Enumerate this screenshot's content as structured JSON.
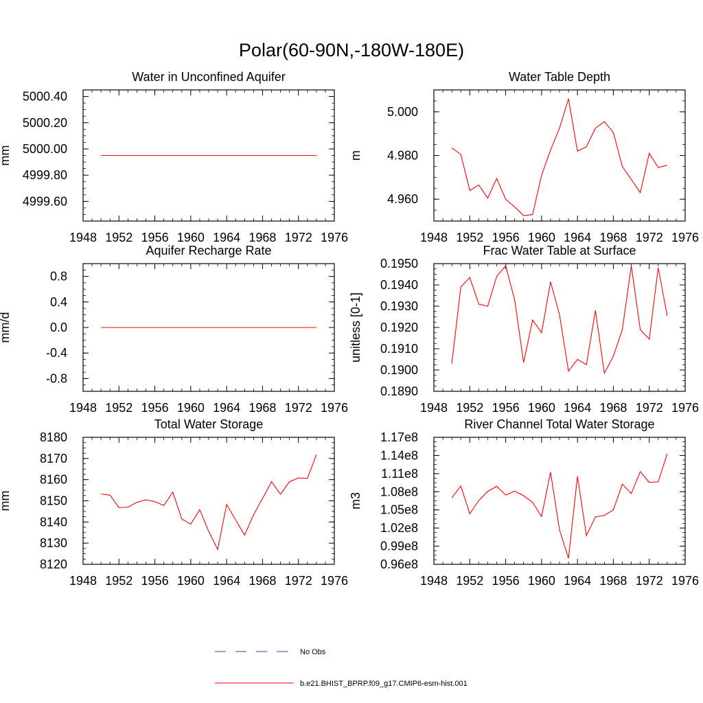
{
  "figure_title": "Polar(60-90N,-180W-180E)",
  "colors": {
    "model_line": "#ff0000",
    "obs_line": "#4040c0",
    "axis": "#000000"
  },
  "legend": {
    "obs_label": "No Obs",
    "model_label": "b.e21.BHIST_BPRP.f09_g17.CMIP6-esm-hist.001"
  },
  "chart_data": [
    {
      "type": "line",
      "title": "Water in Unconfined Aquifer",
      "xlabel": "",
      "ylabel": "mm",
      "xlim": [
        1948,
        1976
      ],
      "ylim": [
        4999.45,
        5000.45
      ],
      "xticks": [
        1948,
        1952,
        1956,
        1960,
        1964,
        1968,
        1972,
        1976
      ],
      "xtick_labels": [
        "1948",
        "1952",
        "1956",
        "1960",
        "1964",
        "1968",
        "1972",
        "1976"
      ],
      "yticks": [
        4999.6,
        4999.8,
        5000.0,
        5000.2,
        5000.4
      ],
      "ytick_labels": [
        "4999.60",
        "4999.80",
        "5000.00",
        "5000.20",
        "5000.40"
      ],
      "series": [
        {
          "name": "b.e21.BHIST_BPRP.f09_g17.CMIP6-esm-hist.001",
          "x": [
            1950,
            1951,
            1952,
            1953,
            1954,
            1955,
            1956,
            1957,
            1958,
            1959,
            1960,
            1961,
            1962,
            1963,
            1964,
            1965,
            1966,
            1967,
            1968,
            1969,
            1970,
            1971,
            1972,
            1973,
            1974
          ],
          "values": [
            4999.95,
            4999.95,
            4999.95,
            4999.95,
            4999.95,
            4999.95,
            4999.95,
            4999.95,
            4999.95,
            4999.95,
            4999.95,
            4999.95,
            4999.95,
            4999.95,
            4999.95,
            4999.95,
            4999.95,
            4999.95,
            4999.95,
            4999.95,
            4999.95,
            4999.95,
            4999.95,
            4999.95,
            4999.95
          ]
        }
      ]
    },
    {
      "type": "line",
      "title": "Water Table Depth",
      "xlabel": "",
      "ylabel": "m",
      "xlim": [
        1948,
        1976
      ],
      "ylim": [
        4.95,
        5.01
      ],
      "xticks": [
        1948,
        1952,
        1956,
        1960,
        1964,
        1968,
        1972,
        1976
      ],
      "xtick_labels": [
        "1948",
        "1952",
        "1956",
        "1960",
        "1964",
        "1968",
        "1972",
        "1976"
      ],
      "yticks": [
        4.96,
        4.98,
        5.0
      ],
      "ytick_labels": [
        "4.960",
        "4.980",
        "5.000"
      ],
      "series": [
        {
          "name": "b.e21.BHIST_BPRP.f09_g17.CMIP6-esm-hist.001",
          "x": [
            1950,
            1951,
            1952,
            1953,
            1954,
            1955,
            1956,
            1957,
            1958,
            1959,
            1960,
            1961,
            1962,
            1963,
            1964,
            1965,
            1966,
            1967,
            1968,
            1969,
            1970,
            1971,
            1972,
            1973,
            1974
          ],
          "values": [
            4.9835,
            4.9805,
            4.964,
            4.9665,
            4.9605,
            4.9695,
            4.96,
            4.9565,
            4.9525,
            4.953,
            4.971,
            4.9825,
            4.9925,
            5.006,
            4.982,
            4.984,
            4.9925,
            4.9955,
            4.9905,
            4.975,
            4.969,
            4.963,
            4.981,
            4.9745,
            4.9755
          ]
        }
      ]
    },
    {
      "type": "line",
      "title": "Aquifer Recharge Rate",
      "xlabel": "",
      "ylabel": "mm/d",
      "xlim": [
        1948,
        1976
      ],
      "ylim": [
        -1.0,
        1.0
      ],
      "xticks": [
        1948,
        1952,
        1956,
        1960,
        1964,
        1968,
        1972,
        1976
      ],
      "xtick_labels": [
        "1948",
        "1952",
        "1956",
        "1960",
        "1964",
        "1968",
        "1972",
        "1976"
      ],
      "yticks": [
        -0.8,
        -0.4,
        0.0,
        0.4,
        0.8
      ],
      "ytick_labels": [
        "-0.8",
        "-0.4",
        "0.0",
        "0.4",
        "0.8"
      ],
      "series": [
        {
          "name": "b.e21.BHIST_BPRP.f09_g17.CMIP6-esm-hist.001",
          "x": [
            1950,
            1951,
            1952,
            1953,
            1954,
            1955,
            1956,
            1957,
            1958,
            1959,
            1960,
            1961,
            1962,
            1963,
            1964,
            1965,
            1966,
            1967,
            1968,
            1969,
            1970,
            1971,
            1972,
            1973,
            1974
          ],
          "values": [
            0,
            0,
            0,
            0,
            0,
            0,
            0,
            0,
            0,
            0,
            0,
            0,
            0,
            0,
            0,
            0,
            0,
            0,
            0,
            0,
            0,
            0,
            0,
            0,
            0
          ]
        }
      ]
    },
    {
      "type": "line",
      "title": "Frac Water Table at Surface",
      "xlabel": "",
      "ylabel": "unitless [0-1]",
      "xlim": [
        1948,
        1976
      ],
      "ylim": [
        0.189,
        0.195
      ],
      "xticks": [
        1948,
        1952,
        1956,
        1960,
        1964,
        1968,
        1972,
        1976
      ],
      "xtick_labels": [
        "1948",
        "1952",
        "1956",
        "1960",
        "1964",
        "1968",
        "1972",
        "1976"
      ],
      "yticks": [
        0.189,
        0.19,
        0.191,
        0.192,
        0.193,
        0.194,
        0.195
      ],
      "ytick_labels": [
        "0.1890",
        "0.1900",
        "0.1910",
        "0.1920",
        "0.1930",
        "0.1940",
        "0.1950"
      ],
      "series": [
        {
          "name": "b.e21.BHIST_BPRP.f09_g17.CMIP6-esm-hist.001",
          "x": [
            1950,
            1951,
            1952,
            1953,
            1954,
            1955,
            1956,
            1957,
            1958,
            1959,
            1960,
            1961,
            1962,
            1963,
            1964,
            1965,
            1966,
            1967,
            1968,
            1969,
            1970,
            1971,
            1972,
            1973,
            1974
          ],
          "values": [
            0.1903,
            0.1939,
            0.19435,
            0.1931,
            0.193,
            0.1944,
            0.1949,
            0.1933,
            0.19035,
            0.19235,
            0.19175,
            0.19415,
            0.1926,
            0.18995,
            0.1905,
            0.19025,
            0.1928,
            0.18985,
            0.19065,
            0.1919,
            0.1949,
            0.1919,
            0.19145,
            0.1948,
            0.19255
          ]
        }
      ]
    },
    {
      "type": "line",
      "title": "Total Water Storage",
      "xlabel": "",
      "ylabel": "mm",
      "xlim": [
        1948,
        1976
      ],
      "ylim": [
        8120,
        8180
      ],
      "xticks": [
        1948,
        1952,
        1956,
        1960,
        1964,
        1968,
        1972,
        1976
      ],
      "xtick_labels": [
        "1948",
        "1952",
        "1956",
        "1960",
        "1964",
        "1968",
        "1972",
        "1976"
      ],
      "yticks": [
        8120,
        8130,
        8140,
        8150,
        8160,
        8170,
        8180
      ],
      "ytick_labels": [
        "8120",
        "8130",
        "8140",
        "8150",
        "8160",
        "8170",
        "8180"
      ],
      "series": [
        {
          "name": "b.e21.BHIST_BPRP.f09_g17.CMIP6-esm-hist.001",
          "x": [
            1950,
            1951,
            1952,
            1953,
            1954,
            1955,
            1956,
            1957,
            1958,
            1959,
            1960,
            1961,
            1962,
            1963,
            1964,
            1965,
            1966,
            1967,
            1968,
            1969,
            1970,
            1971,
            1972,
            1973,
            1974
          ],
          "values": [
            8153.2,
            8152.7,
            8146.8,
            8147,
            8149.3,
            8150.5,
            8149.6,
            8147.8,
            8154.1,
            8141.4,
            8139,
            8145.8,
            8135.6,
            8127,
            8148.3,
            8141,
            8133.8,
            8143.4,
            8151.1,
            8159,
            8153.1,
            8159,
            8160.8,
            8160.6,
            8171.8
          ]
        }
      ]
    },
    {
      "type": "line",
      "title": "River Channel Total Water Storage",
      "xlabel": "",
      "ylabel": "m3",
      "xlim": [
        1948,
        1976
      ],
      "ylim": [
        96000000.0,
        117000000.0
      ],
      "xticks": [
        1948,
        1952,
        1956,
        1960,
        1964,
        1968,
        1972,
        1976
      ],
      "xtick_labels": [
        "1948",
        "1952",
        "1956",
        "1960",
        "1964",
        "1968",
        "1972",
        "1976"
      ],
      "yticks": [
        96000000.0,
        99000000.0,
        102000000.0,
        105000000.0,
        108000000.0,
        111000000.0,
        114000000.0,
        117000000.0
      ],
      "ytick_labels": [
        "0.96e8",
        "0.99e8",
        "1.02e8",
        "1.05e8",
        "1.08e8",
        "1.11e8",
        "1.14e8",
        "1.17e8"
      ],
      "series": [
        {
          "name": "b.e21.BHIST_BPRP.f09_g17.CMIP6-esm-hist.001",
          "x": [
            1950,
            1951,
            1952,
            1953,
            1954,
            1955,
            1956,
            1957,
            1958,
            1959,
            1960,
            1961,
            1962,
            1963,
            1964,
            1965,
            1966,
            1967,
            1968,
            1969,
            1970,
            1971,
            1972,
            1973,
            1974
          ],
          "values": [
            107000000.0,
            108950000.0,
            104350000.0,
            106550000.0,
            108050000.0,
            108900000.0,
            107450000.0,
            108100000.0,
            107350000.0,
            106250000.0,
            103900000.0,
            111250000.0,
            101700000.0,
            97000000.0,
            110550000.0,
            100750000.0,
            103850000.0,
            104100000.0,
            105000000.0,
            109250000.0,
            107700000.0,
            111350000.0,
            109550000.0,
            109650000.0,
            114250000.0
          ]
        }
      ]
    }
  ]
}
